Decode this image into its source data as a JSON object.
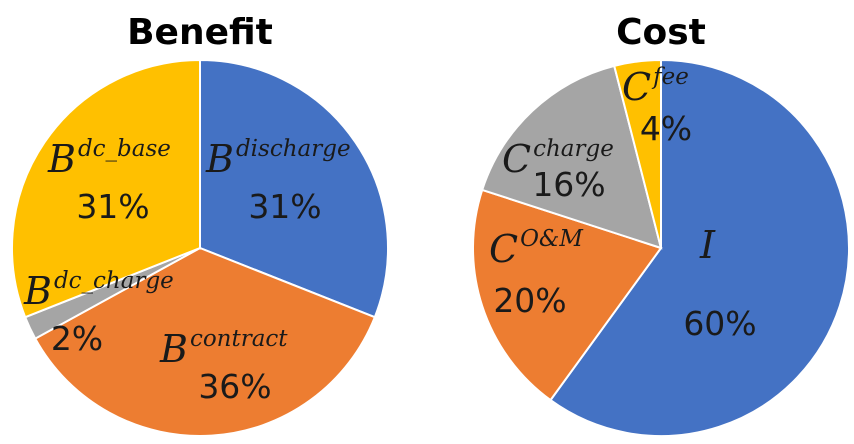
{
  "chart_data": [
    {
      "type": "pie",
      "title": "Benefit",
      "slices": [
        {
          "base": "B",
          "sup": "discharge",
          "percent_label": "31%",
          "value": 31,
          "color": "#4472C4"
        },
        {
          "base": "B",
          "sup": "contract",
          "percent_label": "36%",
          "value": 36,
          "color": "#ED7D31"
        },
        {
          "base": "B",
          "sup": "dc_charge",
          "percent_label": "2%",
          "value": 2,
          "color": "#A5A5A5"
        },
        {
          "base": "B",
          "sup": "dc_base",
          "percent_label": "31%",
          "value": 31,
          "color": "#FFC000"
        }
      ]
    },
    {
      "type": "pie",
      "title": "Cost",
      "slices": [
        {
          "base": "I",
          "sup": "",
          "percent_label": "60%",
          "value": 60,
          "color": "#4472C4"
        },
        {
          "base": "C",
          "sup": "O&M",
          "percent_label": "20%",
          "value": 20,
          "color": "#ED7D31"
        },
        {
          "base": "C",
          "sup": "charge",
          "percent_label": "16%",
          "value": 16,
          "color": "#A5A5A5"
        },
        {
          "base": "C",
          "sup": "fee",
          "percent_label": "4%",
          "value": 4,
          "color": "#FFC000"
        }
      ]
    }
  ]
}
